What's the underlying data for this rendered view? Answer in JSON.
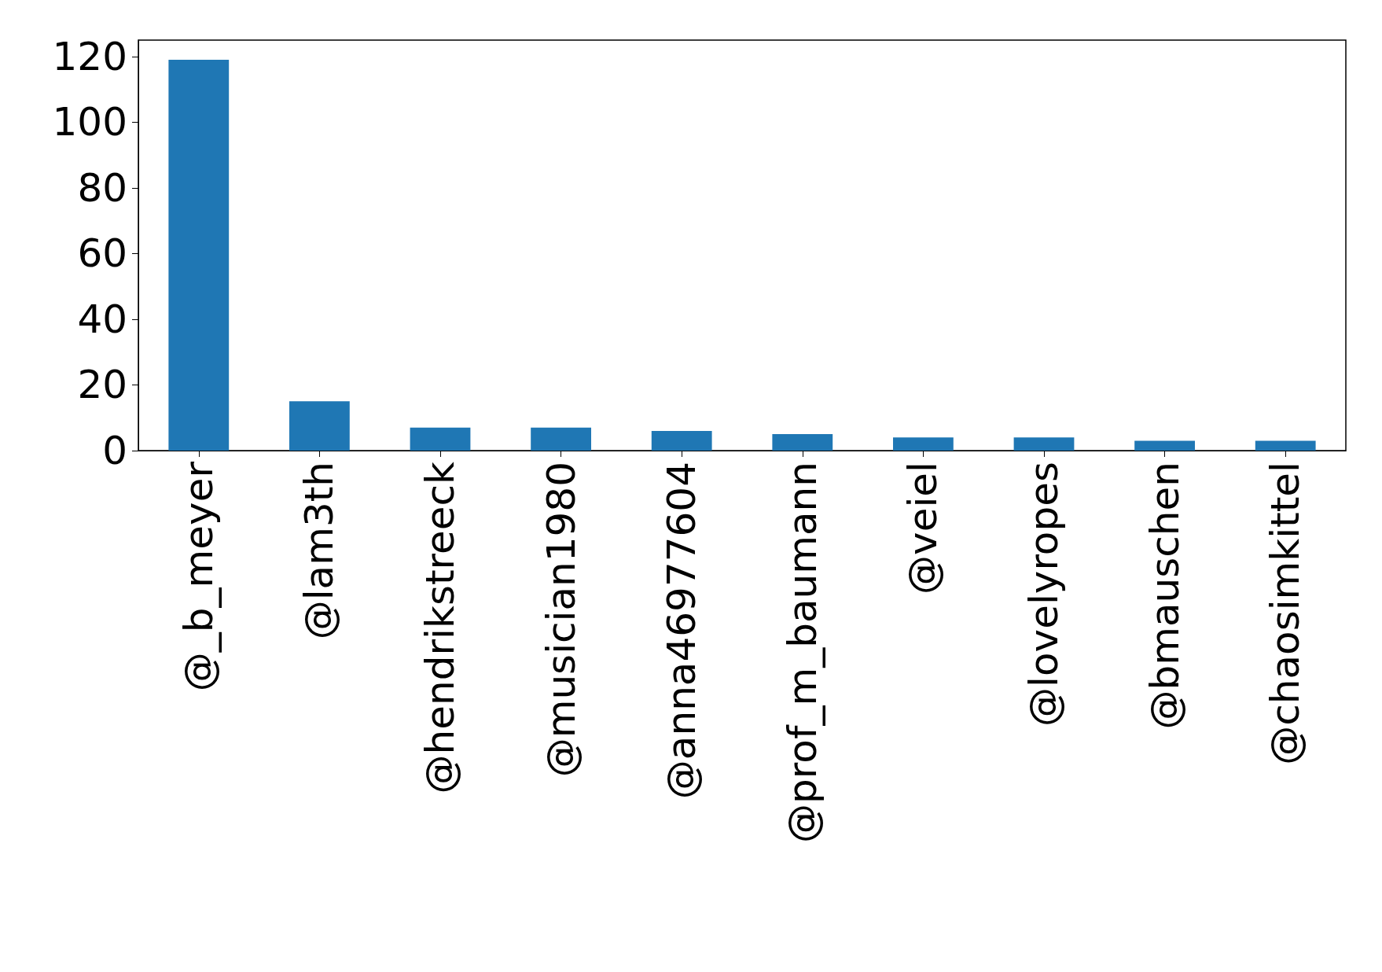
{
  "chart_data": {
    "type": "bar",
    "categories": [
      "@_b_meyer",
      "@lam3th",
      "@hendrikstreeck",
      "@musician1980",
      "@anna46977604",
      "@prof_m_baumann",
      "@veiel",
      "@lovelyropes",
      "@bmauschen",
      "@chaosimkittel"
    ],
    "values": [
      119,
      15,
      7,
      7,
      6,
      5,
      4,
      4,
      3,
      3
    ],
    "color": "#1f77b4",
    "ylim": [
      0,
      125
    ],
    "yticks": [
      0,
      20,
      40,
      60,
      80,
      100,
      120
    ]
  }
}
